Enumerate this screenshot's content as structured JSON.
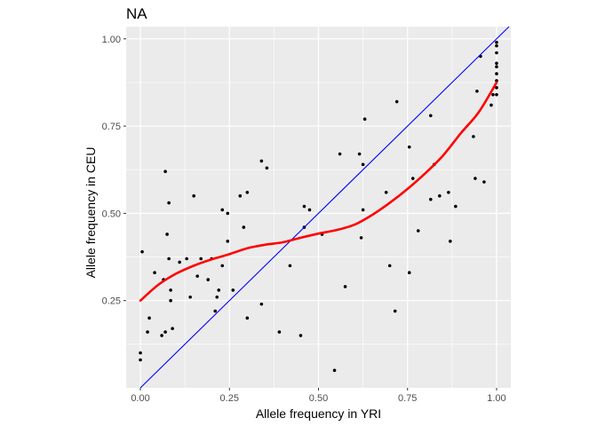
{
  "chart_data": {
    "type": "scatter",
    "title": "NA",
    "xlabel": "Allele frequency in YRI",
    "ylabel": "Allele frequency in CEU",
    "xlim": [
      -0.04,
      1.04
    ],
    "ylim": [
      0.0,
      1.035
    ],
    "x_ticks": [
      0.0,
      0.25,
      0.5,
      0.75,
      1.0
    ],
    "x_tick_labels": [
      "0.00",
      "0.25",
      "0.50",
      "0.75",
      "1.00"
    ],
    "y_ticks": [
      0.25,
      0.5,
      0.75,
      1.0
    ],
    "y_tick_labels": [
      "0.25",
      "0.50",
      "0.75",
      "1.00"
    ],
    "grid": true,
    "legend": "none",
    "colors": {
      "panel": "#ebebeb",
      "grid": "#ffffff",
      "points": "#000000",
      "identity_line": "#0000ff",
      "smooth_line": "#ff0000"
    },
    "points": [
      [
        0.0,
        0.1
      ],
      [
        0.0,
        0.08
      ],
      [
        0.005,
        0.39
      ],
      [
        0.02,
        0.16
      ],
      [
        0.025,
        0.2
      ],
      [
        0.04,
        0.33
      ],
      [
        0.06,
        0.15
      ],
      [
        0.065,
        0.31
      ],
      [
        0.07,
        0.62
      ],
      [
        0.07,
        0.16
      ],
      [
        0.075,
        0.44
      ],
      [
        0.08,
        0.37
      ],
      [
        0.08,
        0.53
      ],
      [
        0.085,
        0.28
      ],
      [
        0.085,
        0.25
      ],
      [
        0.09,
        0.17
      ],
      [
        0.11,
        0.36
      ],
      [
        0.13,
        0.37
      ],
      [
        0.14,
        0.26
      ],
      [
        0.15,
        0.55
      ],
      [
        0.16,
        0.32
      ],
      [
        0.17,
        0.37
      ],
      [
        0.19,
        0.31
      ],
      [
        0.2,
        0.37
      ],
      [
        0.21,
        0.22
      ],
      [
        0.215,
        0.26
      ],
      [
        0.22,
        0.28
      ],
      [
        0.23,
        0.35
      ],
      [
        0.23,
        0.51
      ],
      [
        0.245,
        0.5
      ],
      [
        0.245,
        0.42
      ],
      [
        0.26,
        0.28
      ],
      [
        0.28,
        0.55
      ],
      [
        0.29,
        0.46
      ],
      [
        0.3,
        0.56
      ],
      [
        0.3,
        0.2
      ],
      [
        0.34,
        0.65
      ],
      [
        0.34,
        0.24
      ],
      [
        0.355,
        0.63
      ],
      [
        0.39,
        0.16
      ],
      [
        0.42,
        0.35
      ],
      [
        0.45,
        0.15
      ],
      [
        0.46,
        0.52
      ],
      [
        0.46,
        0.46
      ],
      [
        0.475,
        0.51
      ],
      [
        0.51,
        0.44
      ],
      [
        0.545,
        0.05
      ],
      [
        0.56,
        0.67
      ],
      [
        0.575,
        0.29
      ],
      [
        0.615,
        0.67
      ],
      [
        0.62,
        0.43
      ],
      [
        0.625,
        0.51
      ],
      [
        0.625,
        0.64
      ],
      [
        0.63,
        0.77
      ],
      [
        0.69,
        0.56
      ],
      [
        0.7,
        0.35
      ],
      [
        0.715,
        0.22
      ],
      [
        0.72,
        0.82
      ],
      [
        0.755,
        0.69
      ],
      [
        0.755,
        0.33
      ],
      [
        0.765,
        0.6
      ],
      [
        0.78,
        0.45
      ],
      [
        0.815,
        0.78
      ],
      [
        0.815,
        0.54
      ],
      [
        0.825,
        0.64
      ],
      [
        0.84,
        0.55
      ],
      [
        0.865,
        0.56
      ],
      [
        0.87,
        0.42
      ],
      [
        0.885,
        0.52
      ],
      [
        0.935,
        0.72
      ],
      [
        0.94,
        0.6
      ],
      [
        0.945,
        0.85
      ],
      [
        0.955,
        0.95
      ],
      [
        0.965,
        0.59
      ],
      [
        0.985,
        0.81
      ],
      [
        0.99,
        0.84
      ],
      [
        1.0,
        0.99
      ],
      [
        1.0,
        0.98
      ],
      [
        1.0,
        0.96
      ],
      [
        1.0,
        0.93
      ],
      [
        1.0,
        0.92
      ],
      [
        1.0,
        0.9
      ],
      [
        1.0,
        0.88
      ],
      [
        1.0,
        0.86
      ],
      [
        1.0,
        0.84
      ]
    ],
    "smooth_curve": [
      [
        0.0,
        0.25
      ],
      [
        0.05,
        0.295
      ],
      [
        0.1,
        0.327
      ],
      [
        0.15,
        0.35
      ],
      [
        0.2,
        0.368
      ],
      [
        0.25,
        0.383
      ],
      [
        0.3,
        0.4
      ],
      [
        0.35,
        0.41
      ],
      [
        0.4,
        0.417
      ],
      [
        0.45,
        0.43
      ],
      [
        0.5,
        0.442
      ],
      [
        0.55,
        0.452
      ],
      [
        0.6,
        0.467
      ],
      [
        0.65,
        0.495
      ],
      [
        0.7,
        0.53
      ],
      [
        0.75,
        0.57
      ],
      [
        0.8,
        0.615
      ],
      [
        0.85,
        0.666
      ],
      [
        0.9,
        0.73
      ],
      [
        0.95,
        0.79
      ],
      [
        1.0,
        0.875
      ]
    ],
    "identity_line": [
      [
        0.0,
        0.0
      ],
      [
        1.035,
        1.035
      ]
    ]
  }
}
